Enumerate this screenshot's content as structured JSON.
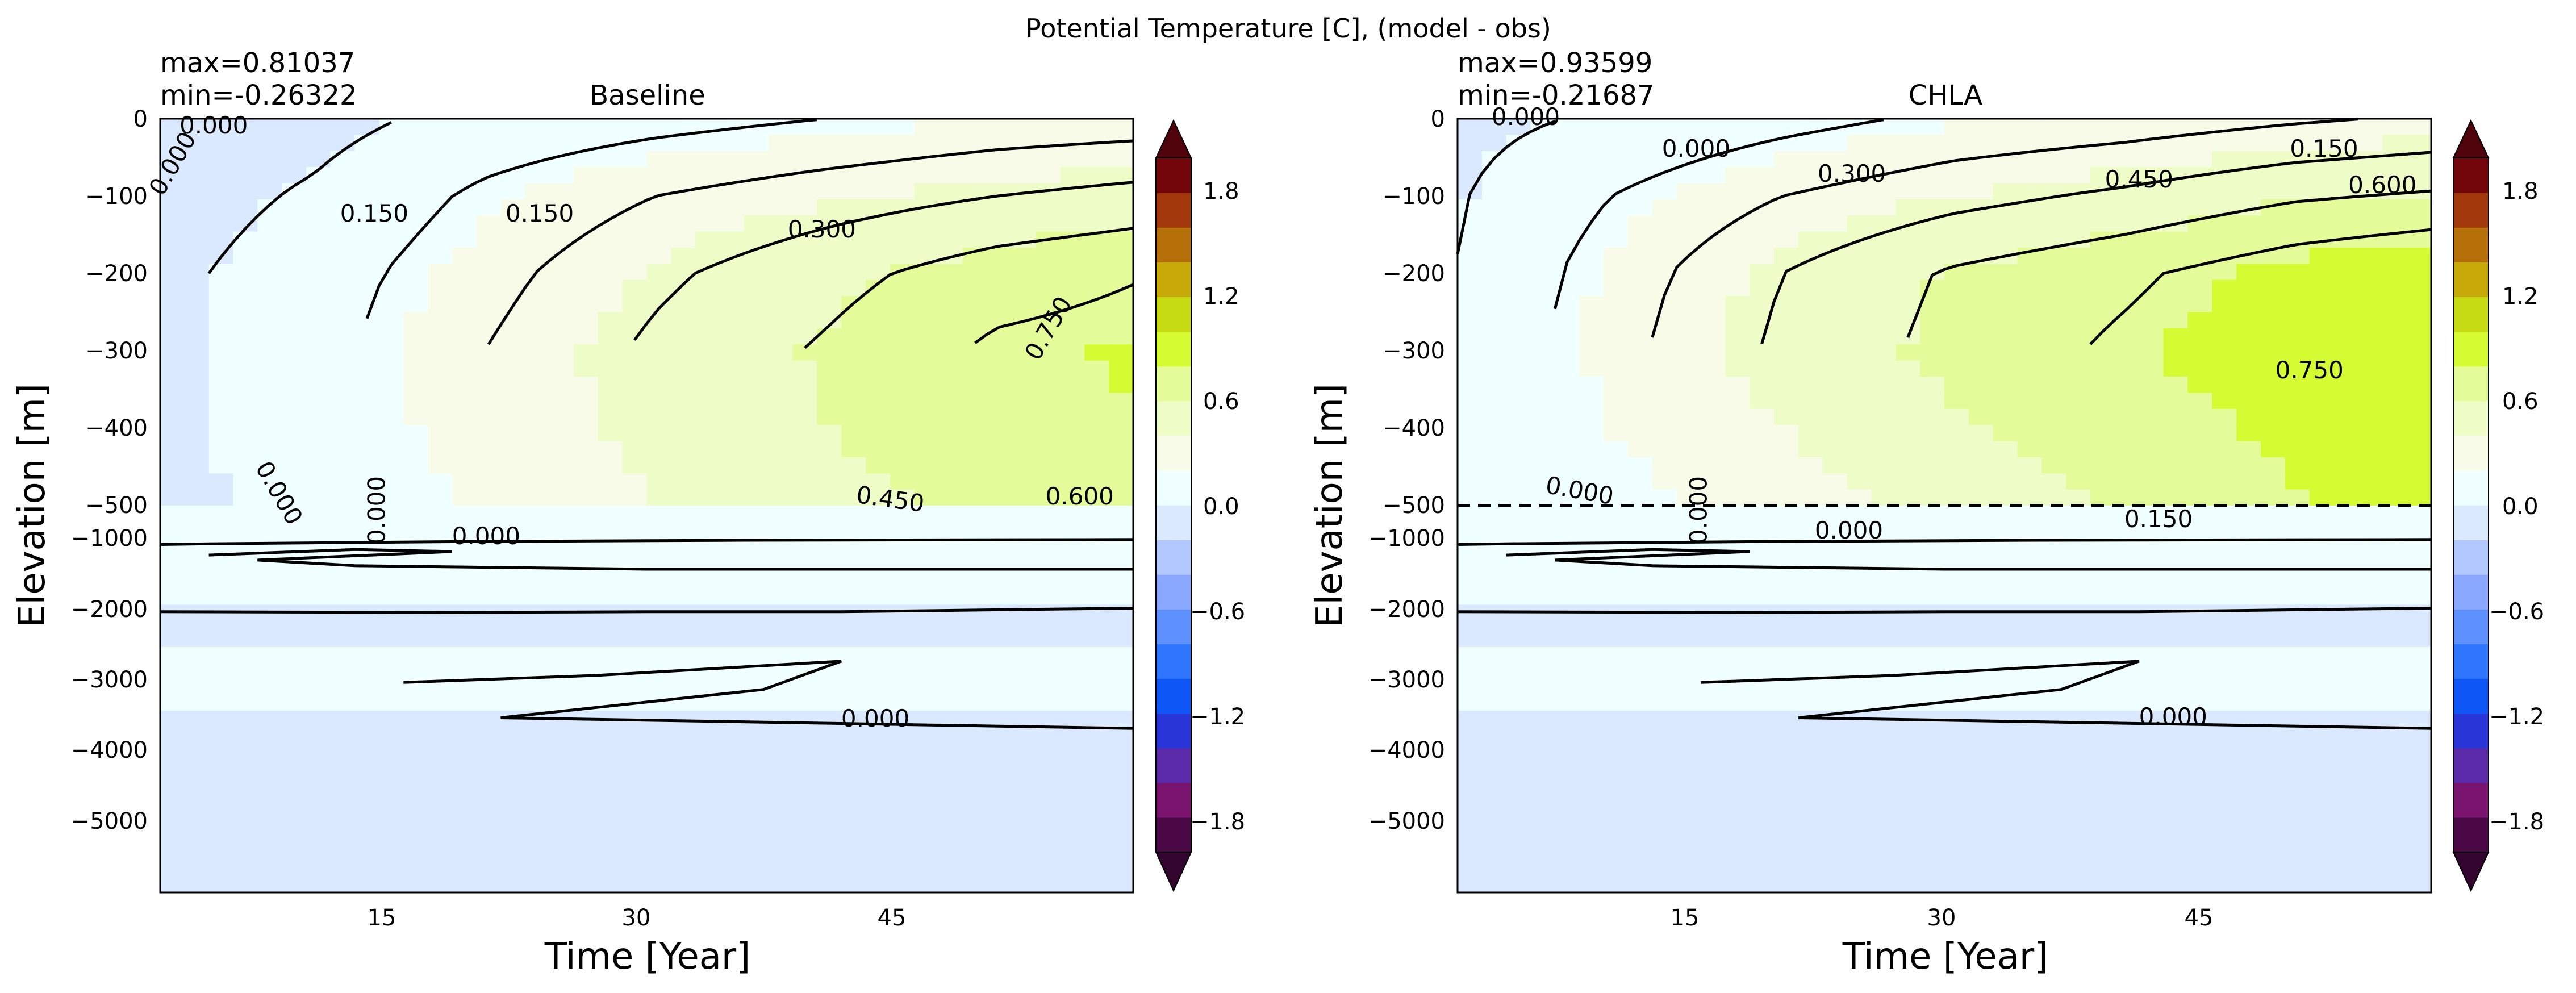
{
  "suptitle": "Potential Temperature [C], (model - obs)",
  "colors": {
    "levels": [
      -2.0,
      -1.8,
      -1.6,
      -1.4,
      -1.2,
      -1.0,
      -0.8,
      -0.6,
      -0.4,
      -0.2,
      0.0,
      0.2,
      0.4,
      0.6,
      0.8,
      1.0,
      1.2,
      1.4,
      1.6,
      1.8,
      2.0
    ],
    "palette": [
      "#4a0846",
      "#7a146e",
      "#5a2aa8",
      "#2a35d8",
      "#0d55f5",
      "#2f76ff",
      "#5e90ff",
      "#8aa8ff",
      "#b3c8ff",
      "#dbe9ff",
      "#f0ffff",
      "#f7fbe8",
      "#eefcc8",
      "#e3fc99",
      "#d5fc33",
      "#c6db14",
      "#c7aa0a",
      "#b5700a",
      "#a2370c",
      "#72060a"
    ],
    "over_color": "#4e040a",
    "under_color": "#32052f",
    "contour_color": "#000000"
  },
  "colorbar": {
    "ticks": [
      "1.8",
      "1.2",
      "0.6",
      "0.0",
      "−0.6",
      "−1.2",
      "−1.8"
    ]
  },
  "chart_data": [
    {
      "type": "heatmap",
      "title": "Baseline",
      "max_label": "max=0.81037",
      "min_label": "min=-0.26322",
      "xlabel": "Time [Year]",
      "ylabel": "Elevation [m]",
      "xlim": [
        1,
        58
      ],
      "x_ticks": [
        "15",
        "30",
        "45"
      ],
      "y_ticks_upper": [
        "0",
        "−100",
        "−200",
        "−300",
        "−400",
        "−500"
      ],
      "y_ticks_lower": [
        "−1000",
        "−2000",
        "−3000",
        "−4000",
        "−5000"
      ],
      "depth_break_m": -500,
      "x": [
        0,
        10,
        20,
        30,
        40,
        50,
        58
      ],
      "depth": [
        0,
        -100,
        -200,
        -300,
        -400,
        -500
      ],
      "values": [
        [
          -0.1,
          -0.05,
          0.05,
          0.1,
          0.15,
          0.2,
          0.22
        ],
        [
          -0.08,
          0.02,
          0.18,
          0.3,
          0.38,
          0.45,
          0.5
        ],
        [
          -0.05,
          0.08,
          0.25,
          0.42,
          0.55,
          0.68,
          0.74
        ],
        [
          -0.05,
          0.1,
          0.3,
          0.48,
          0.62,
          0.78,
          0.81
        ],
        [
          -0.05,
          0.08,
          0.28,
          0.45,
          0.6,
          0.75,
          0.8
        ],
        [
          -0.05,
          0.05,
          0.22,
          0.4,
          0.52,
          0.65,
          0.7
        ]
      ],
      "contour_labels": [
        "0.000",
        "0.150",
        "0.000",
        "0.150",
        "0.300",
        "0.750",
        "0.000",
        "0.000",
        "0.000",
        "0.450",
        "0.600",
        "0.000"
      ]
    },
    {
      "type": "heatmap",
      "title": "CHLA",
      "max_label": "max=0.93599",
      "min_label": "min=-0.21687",
      "xlabel": "Time [Year]",
      "ylabel": "Elevation [m]",
      "xlim": [
        1,
        58
      ],
      "x_ticks": [
        "15",
        "30",
        "45"
      ],
      "y_ticks_upper": [
        "0",
        "−100",
        "−200",
        "−300",
        "−400",
        "−500"
      ],
      "y_ticks_lower": [
        "−1000",
        "−2000",
        "−3000",
        "−4000",
        "−5000"
      ],
      "depth_break_m": -500,
      "x": [
        0,
        10,
        20,
        30,
        40,
        50,
        58
      ],
      "depth": [
        0,
        -100,
        -200,
        -300,
        -400,
        -500
      ],
      "values": [
        [
          -0.05,
          0.02,
          0.1,
          0.18,
          0.22,
          0.28,
          0.32
        ],
        [
          -0.03,
          0.15,
          0.3,
          0.4,
          0.48,
          0.58,
          0.62
        ],
        [
          -0.02,
          0.22,
          0.45,
          0.62,
          0.72,
          0.85,
          0.92
        ],
        [
          -0.02,
          0.25,
          0.48,
          0.65,
          0.78,
          0.9,
          0.94
        ],
        [
          -0.02,
          0.2,
          0.4,
          0.58,
          0.7,
          0.85,
          0.9
        ],
        [
          -0.02,
          0.12,
          0.3,
          0.48,
          0.62,
          0.78,
          0.85
        ]
      ],
      "contour_labels": [
        "0.000",
        "0.000",
        "0.150",
        "0.300",
        "0.450",
        "0.600",
        "0.750",
        "0.000",
        "0.000",
        "0.000",
        "0.150",
        "0.000"
      ]
    }
  ]
}
